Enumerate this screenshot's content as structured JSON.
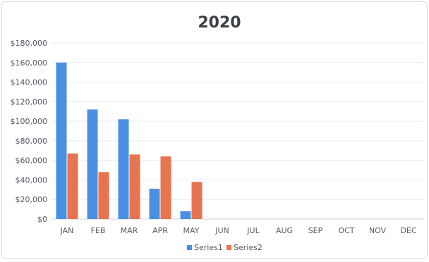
{
  "chart_data": {
    "type": "bar",
    "title": "2020",
    "categories": [
      "JAN",
      "FEB",
      "MAR",
      "APR",
      "MAY",
      "JUN",
      "JUL",
      "AUG",
      "SEP",
      "OCT",
      "NOV",
      "DEC"
    ],
    "series": [
      {
        "name": "Series1",
        "color": "#4a90e2",
        "values": [
          160000,
          112000,
          102000,
          31000,
          8000,
          null,
          null,
          null,
          null,
          null,
          null,
          null
        ]
      },
      {
        "name": "Series2",
        "color": "#e8734f",
        "values": [
          67000,
          48000,
          66000,
          64000,
          38000,
          null,
          null,
          null,
          null,
          null,
          null,
          null
        ]
      }
    ],
    "ylim": [
      0,
      180000
    ],
    "y_ticks": [
      "$0",
      "$20,000",
      "$40,000",
      "$60,000",
      "$80,000",
      "$100,000",
      "$120,000",
      "$140,000",
      "$160,000",
      "$180,000"
    ],
    "y_tick_values": [
      0,
      20000,
      40000,
      60000,
      80000,
      100000,
      120000,
      140000,
      160000,
      180000
    ],
    "grid": true,
    "legend_position": "bottom"
  }
}
